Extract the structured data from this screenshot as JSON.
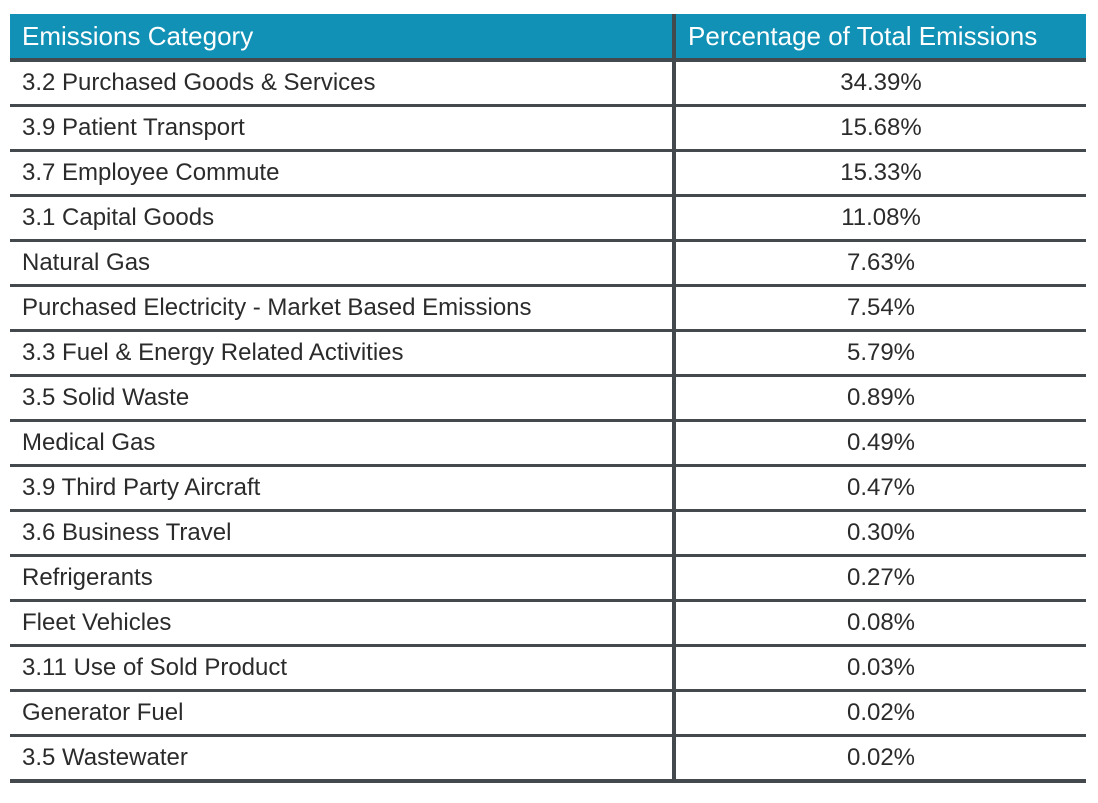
{
  "table": {
    "columns": [
      {
        "label": "Emissions Category"
      },
      {
        "label": "Percentage of Total Emissions"
      }
    ],
    "rows": [
      {
        "category": "3.2 Purchased Goods & Services",
        "percentage": "34.39%"
      },
      {
        "category": "3.9 Patient Transport",
        "percentage": "15.68%"
      },
      {
        "category": "3.7 Employee Commute",
        "percentage": "15.33%"
      },
      {
        "category": "3.1 Capital Goods",
        "percentage": "11.08%"
      },
      {
        "category": "Natural Gas",
        "percentage": "7.63%"
      },
      {
        "category": "Purchased Electricity - Market Based Emissions",
        "percentage": "7.54%"
      },
      {
        "category": "3.3 Fuel & Energy Related Activities",
        "percentage": "5.79%"
      },
      {
        "category": "3.5 Solid Waste",
        "percentage": "0.89%"
      },
      {
        "category": "Medical Gas",
        "percentage": "0.49%"
      },
      {
        "category": "3.9 Third Party Aircraft",
        "percentage": "0.47%"
      },
      {
        "category": "3.6 Business Travel",
        "percentage": "0.30%"
      },
      {
        "category": "Refrigerants",
        "percentage": "0.27%"
      },
      {
        "category": "Fleet Vehicles",
        "percentage": "0.08%"
      },
      {
        "category": "3.11 Use of Sold Product",
        "percentage": "0.03%"
      },
      {
        "category": "Generator Fuel",
        "percentage": "0.02%"
      },
      {
        "category": "3.5 Wastewater",
        "percentage": "0.02%"
      }
    ]
  },
  "chart_data": {
    "type": "table",
    "title": "",
    "columns": [
      "Emissions Category",
      "Percentage of Total Emissions"
    ],
    "categories": [
      "3.2 Purchased Goods & Services",
      "3.9 Patient Transport",
      "3.7 Employee Commute",
      "3.1 Capital Goods",
      "Natural Gas",
      "Purchased Electricity - Market Based Emissions",
      "3.3 Fuel & Energy Related Activities",
      "3.5 Solid Waste",
      "Medical Gas",
      "3.9 Third Party Aircraft",
      "3.6 Business Travel",
      "Refrigerants",
      "Fleet Vehicles",
      "3.11 Use of Sold Product",
      "Generator Fuel",
      "3.5 Wastewater"
    ],
    "values": [
      34.39,
      15.68,
      15.33,
      11.08,
      7.63,
      7.54,
      5.79,
      0.89,
      0.49,
      0.47,
      0.3,
      0.27,
      0.08,
      0.03,
      0.02,
      0.02
    ],
    "value_unit": "%"
  },
  "colors": {
    "header_background": "#1191b5",
    "header_text": "#ffffff",
    "border": "#44494d",
    "body_text": "#2b2b2b",
    "page_background": "#ffffff"
  }
}
